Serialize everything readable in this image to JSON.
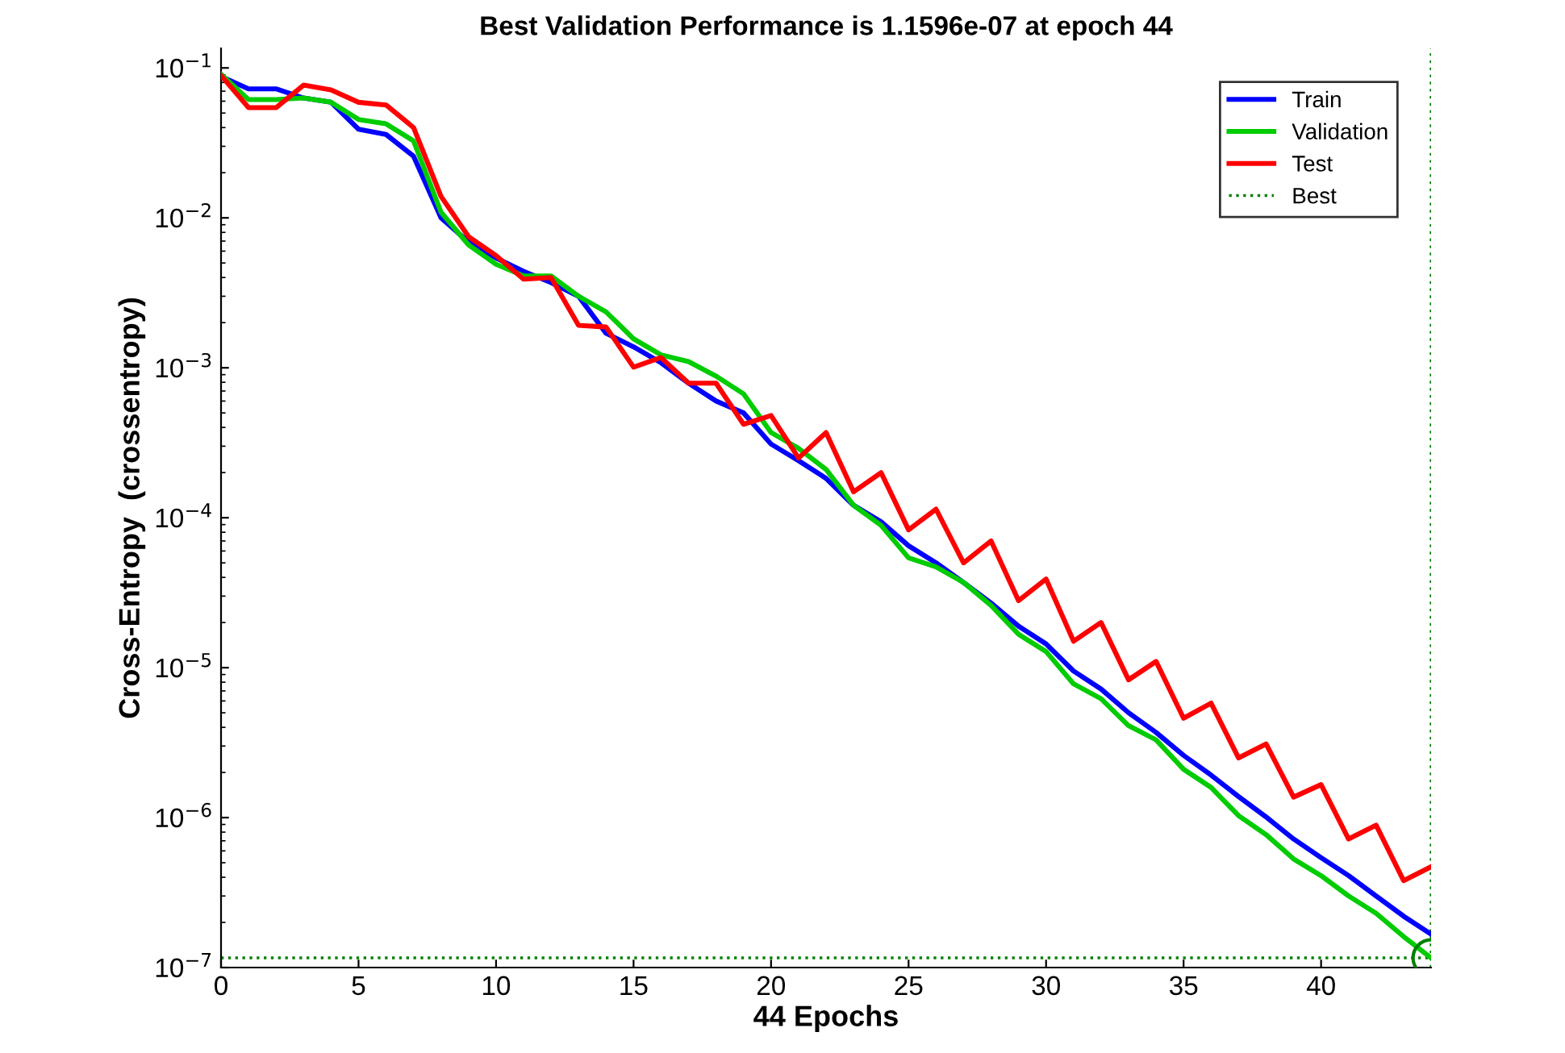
{
  "chart_data": {
    "type": "line",
    "title": "Best Validation Performance is 1.1596e-07 at epoch 44",
    "xlabel": "44 Epochs",
    "ylabel": "Cross-Entropy  (crossentropy)",
    "x": [
      0,
      1,
      2,
      3,
      4,
      5,
      6,
      7,
      8,
      9,
      10,
      11,
      12,
      13,
      14,
      15,
      16,
      17,
      18,
      19,
      20,
      21,
      22,
      23,
      24,
      25,
      26,
      27,
      28,
      29,
      30,
      31,
      32,
      33,
      34,
      35,
      36,
      37,
      38,
      39,
      40,
      41,
      42,
      43,
      44
    ],
    "series": [
      {
        "name": "Train",
        "color": "#0000ff",
        "values": [
          0.0877,
          0.0725,
          0.0725,
          0.063,
          0.059,
          0.039,
          0.036,
          0.0258,
          0.01,
          0.0069,
          0.0054,
          0.0044,
          0.0037,
          0.003,
          0.0017,
          0.00138,
          0.00108,
          0.00079,
          0.0006,
          0.0005,
          0.00031,
          0.00024,
          0.000183,
          0.000121,
          9.4e-05,
          6.5e-05,
          5e-05,
          3.7e-05,
          2.7e-05,
          1.89e-05,
          1.44e-05,
          9.5e-06,
          7.2e-06,
          5e-06,
          3.7e-06,
          2.6e-06,
          1.92e-06,
          1.38e-06,
          1.01e-06,
          7.2e-07,
          5.4e-07,
          4.1e-07,
          3e-07,
          2.2e-07,
          1.67e-07
        ]
      },
      {
        "name": "Validation",
        "color": "#00cc00",
        "values": [
          0.0906,
          0.0615,
          0.0615,
          0.063,
          0.059,
          0.0453,
          0.0424,
          0.0326,
          0.0109,
          0.0066,
          0.0049,
          0.0041,
          0.0041,
          0.003,
          0.00236,
          0.00156,
          0.00122,
          0.0011,
          0.00088,
          0.00067,
          0.00037,
          0.00029,
          0.00021,
          0.000121,
          8.9e-05,
          5.4e-05,
          4.7e-05,
          3.7e-05,
          2.6e-05,
          1.67e-05,
          1.28e-05,
          7.8e-06,
          6.2e-06,
          4.1e-06,
          3.3e-06,
          2.1e-06,
          1.59e-06,
          1.03e-06,
          7.7e-07,
          5.3e-07,
          4.1e-07,
          3e-07,
          2.3e-07,
          1.61e-07,
          1.1596e-07
        ]
      },
      {
        "name": "Test",
        "color": "#ff0000",
        "values": [
          0.089,
          0.0543,
          0.0543,
          0.0768,
          0.0713,
          0.059,
          0.0566,
          0.04,
          0.0139,
          0.0075,
          0.0056,
          0.0039,
          0.004,
          0.00192,
          0.00187,
          0.00101,
          0.00117,
          0.00079,
          0.00079,
          0.00042,
          0.00048,
          0.00025,
          0.00037,
          0.000149,
          0.0002,
          8.3e-05,
          0.000114,
          5e-05,
          7e-05,
          2.8e-05,
          3.9e-05,
          1.5e-05,
          2e-05,
          8.3e-06,
          1.1e-05,
          4.6e-06,
          5.8e-06,
          2.5e-06,
          3.1e-06,
          1.37e-06,
          1.66e-06,
          7.2e-07,
          8.9e-07,
          3.8e-07,
          4.7e-07
        ]
      },
      {
        "name": "Best",
        "type": "scatter",
        "x": [
          44
        ],
        "values": [
          1.1596e-07
        ],
        "color": "#008000",
        "marker": "circle",
        "line_style": "dotted"
      }
    ],
    "ref_lines": [
      {
        "axis": "x",
        "value": 44,
        "color": "#008000",
        "line_style": "dotted"
      },
      {
        "axis": "y",
        "value": 1.1596e-07,
        "color": "#008000",
        "line_style": "dotted"
      }
    ],
    "log": "y",
    "xlim": [
      0,
      44
    ],
    "xticks": [
      0,
      5,
      10,
      15,
      20,
      25,
      30,
      35,
      40
    ],
    "ylim": [
      1e-07,
      0.135
    ],
    "yticks": [
      {
        "value": 0.1,
        "label": "10$^{−1}$"
      },
      {
        "value": 0.01,
        "label": "10$^{−2}$"
      },
      {
        "value": 0.001,
        "label": "10$^{−3}$"
      },
      {
        "value": 0.0001,
        "label": "10$^{−4}$"
      },
      {
        "value": 1e-05,
        "label": "10$^{−5}$"
      },
      {
        "value": 1e-06,
        "label": "10$^{−6}$"
      },
      {
        "value": 1e-07,
        "label": "10$^{−7}$"
      }
    ],
    "legend": "top right",
    "grid": false
  }
}
